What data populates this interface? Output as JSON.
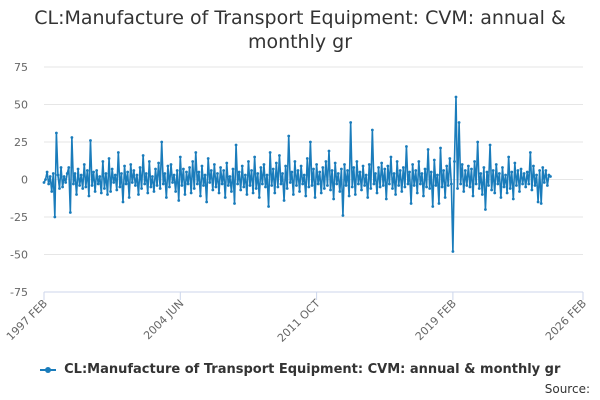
{
  "chart_data": {
    "type": "line",
    "title_lines": [
      "CL:Manufacture of Transport Equipment: CVM: annual &",
      "monthly gr"
    ],
    "xlabel": "",
    "ylabel": "",
    "ylim": [
      -75,
      75
    ],
    "y_ticks": [
      "75",
      "50",
      "25",
      "0",
      "-25",
      "-50",
      "-75"
    ],
    "x_range": [
      "1997-02",
      "2026-02"
    ],
    "x_ticks": [
      {
        "label": "1997 FEB",
        "date": "1997-02"
      },
      {
        "label": "2004 JUN",
        "date": "2004-06"
      },
      {
        "label": "2011 OCT",
        "date": "2011-10"
      },
      {
        "label": "2019 FEB",
        "date": "2019-02"
      },
      {
        "label": "2026 FEB",
        "date": "2026-02"
      }
    ],
    "grid": true,
    "legend_position": "bottom",
    "series": [
      {
        "name": "CL:Manufacture of Transport Equipment: CVM: annual & monthly gr",
        "color": "#1a7cbb",
        "start": "1997-02",
        "frequency": "monthly",
        "values": [
          -2,
          0,
          5,
          -3,
          2,
          -8,
          4,
          -25,
          31,
          3,
          -6,
          8,
          -5,
          2,
          -2,
          4,
          8,
          -22,
          28,
          -3,
          4,
          -10,
          7,
          -4,
          3,
          -6,
          10,
          -5,
          6,
          -11,
          26,
          -4,
          5,
          -8,
          6,
          -3,
          2,
          -9,
          12,
          -6,
          4,
          -10,
          14,
          -8,
          7,
          -2,
          3,
          -7,
          18,
          -5,
          4,
          -15,
          9,
          -3,
          5,
          -12,
          10,
          -2,
          6,
          -4,
          3,
          -10,
          8,
          -6,
          16,
          -3,
          4,
          -9,
          12,
          -5,
          2,
          -8,
          7,
          -4,
          11,
          -6,
          25,
          -3,
          4,
          -12,
          9,
          -5,
          10,
          -2,
          3,
          -8,
          6,
          -14,
          15,
          -4,
          7,
          -10,
          5,
          -3,
          8,
          -9,
          12,
          -6,
          18,
          -3,
          5,
          -11,
          9,
          -4,
          3,
          -15,
          14,
          -2,
          6,
          -7,
          10,
          -5,
          4,
          -9,
          8,
          -3,
          6,
          -12,
          11,
          -4,
          2,
          -8,
          7,
          -16,
          23,
          -3,
          5,
          -7,
          9,
          -5,
          3,
          -10,
          12,
          -4,
          6,
          -9,
          15,
          -6,
          4,
          -12,
          8,
          -3,
          10,
          -5,
          3,
          -18,
          18,
          -4,
          7,
          -9,
          11,
          -5,
          16,
          -3,
          4,
          -14,
          9,
          -6,
          29,
          -2,
          5,
          -10,
          12,
          -4,
          6,
          -8,
          9,
          -3,
          3,
          -11,
          14,
          -5,
          25,
          -4,
          7,
          -12,
          10,
          -3,
          5,
          -9,
          8,
          -6,
          12,
          -4,
          19,
          -7,
          6,
          -13,
          11,
          -3,
          4,
          -8,
          7,
          -24,
          10,
          -4,
          6,
          -11,
          38,
          -5,
          8,
          -10,
          12,
          -3,
          5,
          -7,
          9,
          -4,
          3,
          -12,
          10,
          -6,
          33,
          -3,
          4,
          -9,
          8,
          -5,
          11,
          -4,
          7,
          -13,
          9,
          -3,
          15,
          -6,
          4,
          -10,
          12,
          -4,
          6,
          -8,
          8,
          -5,
          22,
          -3,
          5,
          -16,
          10,
          -4,
          6,
          -9,
          12,
          -3,
          4,
          -11,
          7,
          -5,
          20,
          -6,
          5,
          -18,
          13,
          -4,
          3,
          -16,
          21,
          -5,
          6,
          -12,
          9,
          -4,
          14,
          -3,
          -48,
          12,
          55,
          -6,
          38,
          -3,
          10,
          -8,
          6,
          -4,
          9,
          -5,
          7,
          -11,
          12,
          -3,
          25,
          -6,
          4,
          -10,
          8,
          -20,
          5,
          -4,
          23,
          -7,
          6,
          -9,
          10,
          -3,
          4,
          -12,
          8,
          -5,
          3,
          -9,
          15,
          -6,
          5,
          -13,
          11,
          -4,
          6,
          -8,
          7,
          -3,
          4,
          -5,
          5,
          -3,
          18,
          -7,
          9,
          -4,
          3,
          -15,
          6,
          -16,
          8,
          -2,
          6,
          -4,
          3,
          2
        ]
      }
    ]
  },
  "source_label": "Source:"
}
